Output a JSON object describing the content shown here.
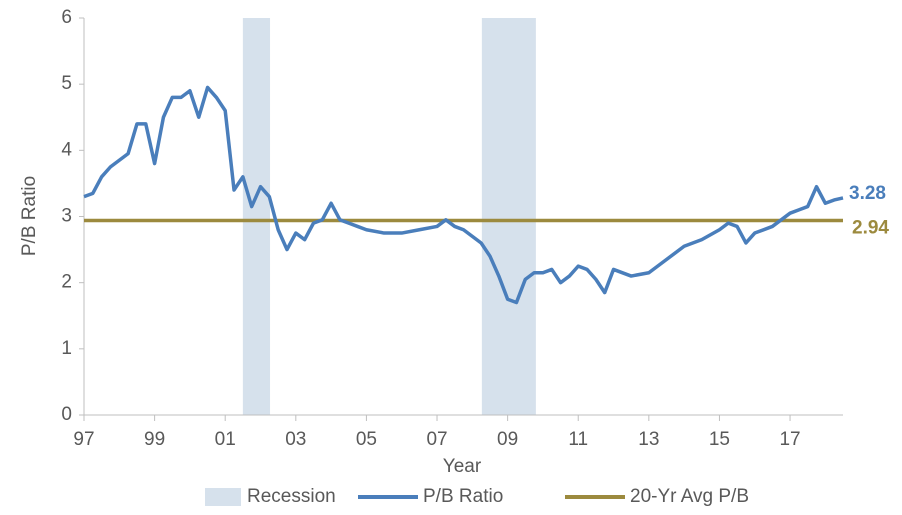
{
  "chart_data": {
    "type": "line",
    "x_label": "Year",
    "y_label": "P/B Ratio",
    "xlim": [
      1997,
      2018.5
    ],
    "ylim": [
      0,
      6
    ],
    "xticks": [
      {
        "value": 1997,
        "label": "97"
      },
      {
        "value": 1999,
        "label": "99"
      },
      {
        "value": 2001,
        "label": "01"
      },
      {
        "value": 2003,
        "label": "03"
      },
      {
        "value": 2005,
        "label": "05"
      },
      {
        "value": 2007,
        "label": "07"
      },
      {
        "value": 2009,
        "label": "09"
      },
      {
        "value": 2011,
        "label": "11"
      },
      {
        "value": 2013,
        "label": "13"
      },
      {
        "value": 2015,
        "label": "15"
      },
      {
        "value": 2017,
        "label": "17"
      }
    ],
    "yticks": [
      0,
      1,
      2,
      3,
      4,
      5,
      6
    ],
    "legend": "bottom",
    "x": [
      1997,
      1997.25,
      1997.5,
      1997.75,
      1998,
      1998.25,
      1998.5,
      1998.75,
      1999,
      1999.25,
      1999.5,
      1999.75,
      2000,
      2000.25,
      2000.5,
      2000.75,
      2001,
      2001.25,
      2001.5,
      2001.75,
      2002,
      2002.25,
      2002.5,
      2002.75,
      2003,
      2003.25,
      2003.5,
      2003.75,
      2004,
      2004.25,
      2004.5,
      2004.75,
      2005,
      2005.5,
      2006,
      2006.5,
      2007,
      2007.25,
      2007.5,
      2007.75,
      2008,
      2008.25,
      2008.5,
      2008.75,
      2009,
      2009.25,
      2009.5,
      2009.75,
      2010,
      2010.25,
      2010.5,
      2010.75,
      2011,
      2011.25,
      2011.5,
      2011.75,
      2012,
      2012.5,
      2013,
      2013.5,
      2014,
      2014.5,
      2015,
      2015.25,
      2015.5,
      2015.75,
      2016,
      2016.5,
      2017,
      2017.25,
      2017.5,
      2017.75,
      2018,
      2018.25,
      2018.5
    ],
    "series": [
      {
        "name": "Recession",
        "color": "#d6e1ec",
        "spans": [
          [
            2001.5,
            2002.27
          ],
          [
            2008.27,
            2009.8
          ]
        ]
      },
      {
        "name": "P/B Ratio",
        "color": "#4a7ebb",
        "values": [
          3.3,
          3.35,
          3.6,
          3.75,
          3.85,
          3.95,
          4.4,
          4.4,
          3.8,
          4.5,
          4.8,
          4.8,
          4.9,
          4.5,
          4.95,
          4.8,
          4.6,
          3.4,
          3.6,
          3.15,
          3.45,
          3.3,
          2.8,
          2.5,
          2.75,
          2.65,
          2.9,
          2.95,
          3.2,
          2.95,
          2.9,
          2.85,
          2.8,
          2.75,
          2.75,
          2.8,
          2.85,
          2.95,
          2.85,
          2.8,
          2.7,
          2.6,
          2.4,
          2.1,
          1.75,
          1.7,
          2.05,
          2.15,
          2.15,
          2.2,
          2.0,
          2.1,
          2.25,
          2.2,
          2.05,
          1.85,
          2.2,
          2.1,
          2.15,
          2.35,
          2.55,
          2.65,
          2.8,
          2.9,
          2.85,
          2.6,
          2.75,
          2.85,
          3.05,
          3.1,
          3.15,
          3.45,
          3.2,
          3.25,
          3.28
        ]
      },
      {
        "name": "20-Yr Avg P/B",
        "color": "#9c8a3e",
        "value": 2.94
      }
    ]
  }
}
